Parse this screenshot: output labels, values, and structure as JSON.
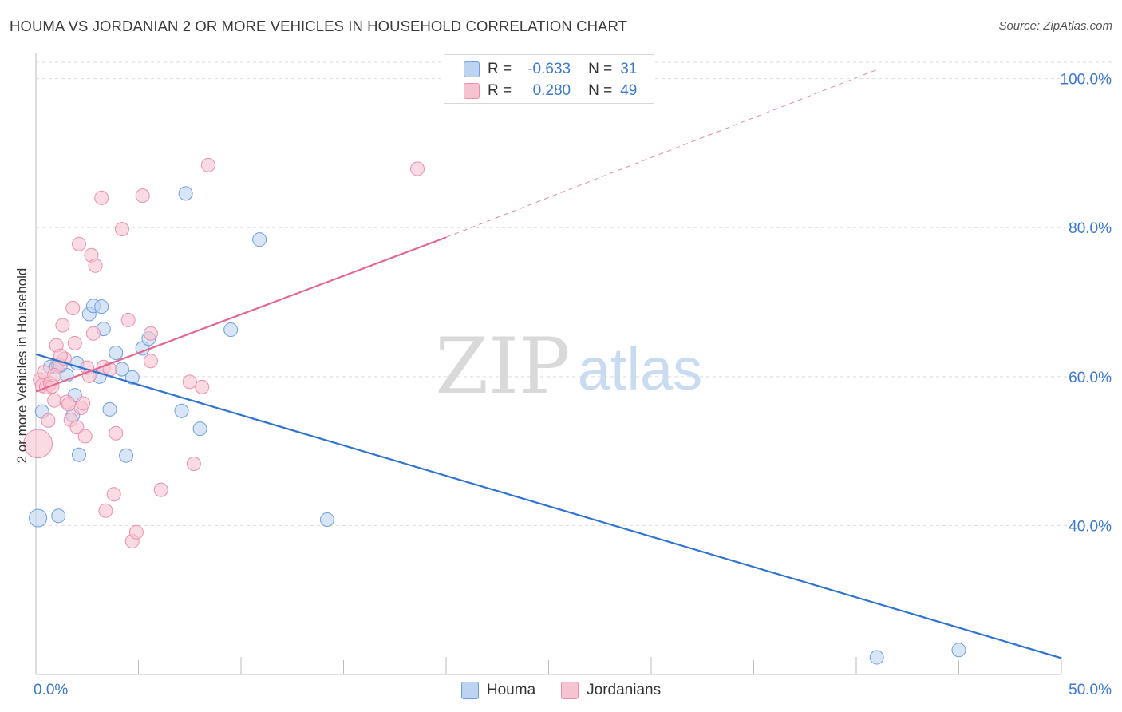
{
  "title": "HOUMA VS JORDANIAN 2 OR MORE VEHICLES IN HOUSEHOLD CORRELATION CHART",
  "source": "Source: ZipAtlas.com",
  "watermark": {
    "zip": "ZIP",
    "atlas": "atlas"
  },
  "legend": {
    "r_label": "R =",
    "n_label": "N =",
    "series": [
      {
        "name": "Houma",
        "r": "-0.633",
        "n": "31"
      },
      {
        "name": "Jordanians",
        "r": "0.280",
        "n": "49"
      }
    ]
  },
  "colors": {
    "houma_fill": "#bcd3f2",
    "houma_stroke": "#6f9fdc",
    "houma_line": "#2f74d0",
    "jordan_fill": "#f6c3d1",
    "jordan_stroke": "#ec8fab",
    "jordan_line": "#e3688f",
    "tick_text": "#3b78d0",
    "grid": "#dddddd"
  },
  "chart_data": {
    "type": "scatter",
    "title": "HOUMA VS JORDANIAN 2 OR MORE VEHICLES IN HOUSEHOLD CORRELATION CHART",
    "xlabel": "",
    "ylabel": "2 or more Vehicles in Household",
    "xlim": [
      0,
      50
    ],
    "ylim": [
      20,
      102
    ],
    "x_tick_labels": [
      "0.0%",
      "50.0%"
    ],
    "y_ticks": [
      40,
      60,
      80,
      100
    ],
    "y_tick_labels": [
      "40.0%",
      "60.0%",
      "80.0%",
      "100.0%"
    ],
    "grid": true,
    "series": [
      {
        "name": "Houma",
        "trend": {
          "x": [
            0,
            50
          ],
          "y": [
            63.0,
            22.2
          ],
          "style": "solid"
        },
        "points": [
          {
            "x": 0.1,
            "y": 41.0,
            "s": 1.3
          },
          {
            "x": 0.3,
            "y": 55.3,
            "s": 1
          },
          {
            "x": 0.7,
            "y": 61.3,
            "s": 1
          },
          {
            "x": 1.0,
            "y": 61.3,
            "s": 1
          },
          {
            "x": 1.1,
            "y": 41.3,
            "s": 1
          },
          {
            "x": 1.5,
            "y": 60.2,
            "s": 1
          },
          {
            "x": 1.8,
            "y": 54.8,
            "s": 1
          },
          {
            "x": 1.9,
            "y": 57.5,
            "s": 1
          },
          {
            "x": 2.1,
            "y": 49.5,
            "s": 1
          },
          {
            "x": 2.6,
            "y": 68.4,
            "s": 1
          },
          {
            "x": 2.8,
            "y": 69.5,
            "s": 1
          },
          {
            "x": 3.1,
            "y": 60.0,
            "s": 1
          },
          {
            "x": 3.2,
            "y": 69.4,
            "s": 1
          },
          {
            "x": 3.3,
            "y": 66.4,
            "s": 1
          },
          {
            "x": 3.6,
            "y": 55.6,
            "s": 1
          },
          {
            "x": 3.9,
            "y": 63.2,
            "s": 1
          },
          {
            "x": 4.2,
            "y": 61.0,
            "s": 1
          },
          {
            "x": 4.4,
            "y": 49.4,
            "s": 1
          },
          {
            "x": 4.7,
            "y": 59.9,
            "s": 1
          },
          {
            "x": 5.2,
            "y": 63.8,
            "s": 1
          },
          {
            "x": 5.5,
            "y": 65.1,
            "s": 1
          },
          {
            "x": 7.1,
            "y": 55.4,
            "s": 1
          },
          {
            "x": 7.3,
            "y": 84.6,
            "s": 1
          },
          {
            "x": 8.0,
            "y": 53.0,
            "s": 1
          },
          {
            "x": 9.5,
            "y": 66.3,
            "s": 1
          },
          {
            "x": 10.9,
            "y": 78.4,
            "s": 1
          },
          {
            "x": 14.2,
            "y": 40.8,
            "s": 1
          },
          {
            "x": 41.0,
            "y": 22.3,
            "s": 1
          },
          {
            "x": 45.0,
            "y": 23.3,
            "s": 1
          },
          {
            "x": 1.2,
            "y": 61.5,
            "s": 1
          },
          {
            "x": 2.0,
            "y": 61.8,
            "s": 1
          }
        ]
      },
      {
        "name": "Jordanians",
        "trend": {
          "x": [
            0,
            20
          ],
          "y": [
            58.0,
            78.7
          ],
          "style": "solid",
          "extension": {
            "x": [
              20,
              41
            ],
            "y": [
              78.7,
              101.2
            ],
            "style": "dashed"
          }
        },
        "points": [
          {
            "x": 0.1,
            "y": 51.0,
            "s": 2.1
          },
          {
            "x": 0.2,
            "y": 59.6,
            "s": 1
          },
          {
            "x": 0.3,
            "y": 58.8,
            "s": 1
          },
          {
            "x": 0.4,
            "y": 60.6,
            "s": 1
          },
          {
            "x": 0.5,
            "y": 58.6,
            "s": 1
          },
          {
            "x": 0.6,
            "y": 54.1,
            "s": 1
          },
          {
            "x": 0.7,
            "y": 59.1,
            "s": 1
          },
          {
            "x": 0.8,
            "y": 58.7,
            "s": 1
          },
          {
            "x": 0.9,
            "y": 56.8,
            "s": 1
          },
          {
            "x": 1.0,
            "y": 64.2,
            "s": 1
          },
          {
            "x": 1.1,
            "y": 61.5,
            "s": 1
          },
          {
            "x": 1.3,
            "y": 66.9,
            "s": 1
          },
          {
            "x": 1.4,
            "y": 62.4,
            "s": 1
          },
          {
            "x": 1.5,
            "y": 56.6,
            "s": 1
          },
          {
            "x": 1.6,
            "y": 56.3,
            "s": 1
          },
          {
            "x": 1.7,
            "y": 54.2,
            "s": 1
          },
          {
            "x": 1.8,
            "y": 69.2,
            "s": 1
          },
          {
            "x": 1.9,
            "y": 64.5,
            "s": 1
          },
          {
            "x": 2.0,
            "y": 53.2,
            "s": 1
          },
          {
            "x": 2.1,
            "y": 77.8,
            "s": 1
          },
          {
            "x": 2.2,
            "y": 55.8,
            "s": 1
          },
          {
            "x": 2.3,
            "y": 56.4,
            "s": 1
          },
          {
            "x": 2.4,
            "y": 52.0,
            "s": 1
          },
          {
            "x": 2.5,
            "y": 61.2,
            "s": 1
          },
          {
            "x": 2.6,
            "y": 60.1,
            "s": 1
          },
          {
            "x": 2.7,
            "y": 76.3,
            "s": 1
          },
          {
            "x": 2.8,
            "y": 65.8,
            "s": 1
          },
          {
            "x": 2.9,
            "y": 74.9,
            "s": 1
          },
          {
            "x": 3.2,
            "y": 84.0,
            "s": 1
          },
          {
            "x": 3.3,
            "y": 61.3,
            "s": 1
          },
          {
            "x": 3.4,
            "y": 42.0,
            "s": 1
          },
          {
            "x": 3.6,
            "y": 61.0,
            "s": 1
          },
          {
            "x": 3.8,
            "y": 44.2,
            "s": 1
          },
          {
            "x": 3.9,
            "y": 52.4,
            "s": 1
          },
          {
            "x": 4.2,
            "y": 79.8,
            "s": 1
          },
          {
            "x": 4.5,
            "y": 67.6,
            "s": 1
          },
          {
            "x": 4.7,
            "y": 37.9,
            "s": 1
          },
          {
            "x": 4.9,
            "y": 39.1,
            "s": 1
          },
          {
            "x": 5.2,
            "y": 84.3,
            "s": 1
          },
          {
            "x": 5.6,
            "y": 65.8,
            "s": 1
          },
          {
            "x": 5.6,
            "y": 62.1,
            "s": 1
          },
          {
            "x": 6.1,
            "y": 44.8,
            "s": 1
          },
          {
            "x": 7.5,
            "y": 59.3,
            "s": 1
          },
          {
            "x": 7.7,
            "y": 48.3,
            "s": 1
          },
          {
            "x": 8.1,
            "y": 58.6,
            "s": 1
          },
          {
            "x": 8.4,
            "y": 88.4,
            "s": 1
          },
          {
            "x": 18.6,
            "y": 87.9,
            "s": 1
          },
          {
            "x": 1.2,
            "y": 62.8,
            "s": 1
          },
          {
            "x": 0.9,
            "y": 60.2,
            "s": 1
          }
        ]
      }
    ]
  }
}
